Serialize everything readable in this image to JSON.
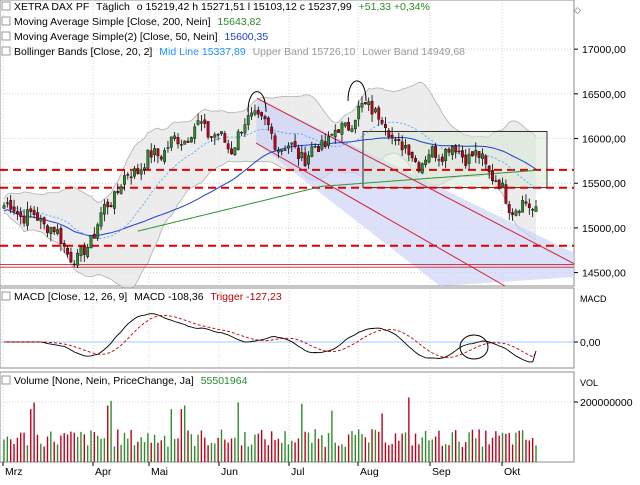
{
  "header": {
    "line1": {
      "symbol": "XETRA DAX PF",
      "interval": "Täglich",
      "quote": "o 15219,42 h 15271,51 l 15103,12 c 15237,99",
      "change": "+51,33 +0,34%"
    },
    "line2": {
      "label": "Moving Average Simple [Close, 200, Nein]",
      "value": "15643,82"
    },
    "line3": {
      "label": "Moving Average Simple(2) [Close, 50, Nein]",
      "value": "15600,35"
    },
    "line4": {
      "label": "Bollinger Bands [Close, 20, 2]",
      "mid": "Mid Line 15337,89",
      "upper": "Upper Band 15726,10",
      "lower": "Lower Band 14949,68"
    }
  },
  "macd": {
    "label": "MACD [Close, 12, 26, 9]",
    "value": "MACD -108,36",
    "trigger": "Trigger -127,23",
    "axis_title": "MACD",
    "axis_tick": "0,00"
  },
  "volume": {
    "label": "Volume [None, Nein, PriceChange, Ja]",
    "value": "55501964",
    "axis_title": "VOL",
    "axis_tick": "200000000"
  },
  "price_axis_ticks": [
    "17000,00",
    "16500,00",
    "16000,00",
    "15500,00",
    "15000,00",
    "14500,00"
  ],
  "months": [
    "Mrz",
    "Apr",
    "Mai",
    "Jun",
    "Jul",
    "Aug",
    "Sep",
    "Okt"
  ],
  "colors": {
    "up": "#2e8b2e",
    "down": "#c0001a",
    "ma200": "#2f8f2f",
    "ma50": "#1f3fd0",
    "mid": "#3aa0ff",
    "band_fill": "#e6e6e6",
    "support": "#e00000",
    "channel": "#d02030",
    "channel_fill": "#cdd3f6",
    "box_fill": "#d8e8d8",
    "header_value": "#2a8a2a",
    "header_mid": "#1e90ff",
    "header_bands": "#999999",
    "trigger": "#c00000"
  },
  "chart_data": {
    "type": "candlestick",
    "symbol": "XETRA DAX PF",
    "interval": "Täglich",
    "last": {
      "open": 15219.42,
      "high": 15271.51,
      "low": 15103.12,
      "close": 15237.99,
      "change": 51.33,
      "change_pct": 0.34
    },
    "price_range": [
      14350,
      17550
    ],
    "months": [
      "Mrz",
      "Apr",
      "Mai",
      "Jun",
      "Jul",
      "Aug",
      "Sep",
      "Okt"
    ],
    "close_path": [
      [
        "Mrz",
        15250
      ],
      [
        "Mrz",
        15050
      ],
      [
        "Mrz",
        14600
      ],
      [
        "Apr",
        15150
      ],
      [
        "Apr",
        15500
      ],
      [
        "Apr",
        15700
      ],
      [
        "Mai",
        15900
      ],
      [
        "Mai",
        16150
      ],
      [
        "Jun",
        15900
      ],
      [
        "Jun",
        16300
      ],
      [
        "Jun",
        15950
      ],
      [
        "Jul",
        15800
      ],
      [
        "Jul",
        16100
      ],
      [
        "Aug",
        16400
      ],
      [
        "Aug",
        16000
      ],
      [
        "Aug",
        15750
      ],
      [
        "Sep",
        15900
      ],
      [
        "Sep",
        15750
      ],
      [
        "Okt",
        15250
      ],
      [
        "Okt",
        15238
      ]
    ],
    "indicators": {
      "ma200": 15643.82,
      "ma50": 15600.35,
      "bollinger": {
        "mid": 15337.89,
        "upper": 15726.1,
        "lower": 14949.68
      }
    },
    "support_levels": [
      15650,
      15450,
      14800
    ],
    "macd": {
      "macd": -108.36,
      "trigger": -127.23
    },
    "volume": {
      "last": 55501964
    }
  }
}
